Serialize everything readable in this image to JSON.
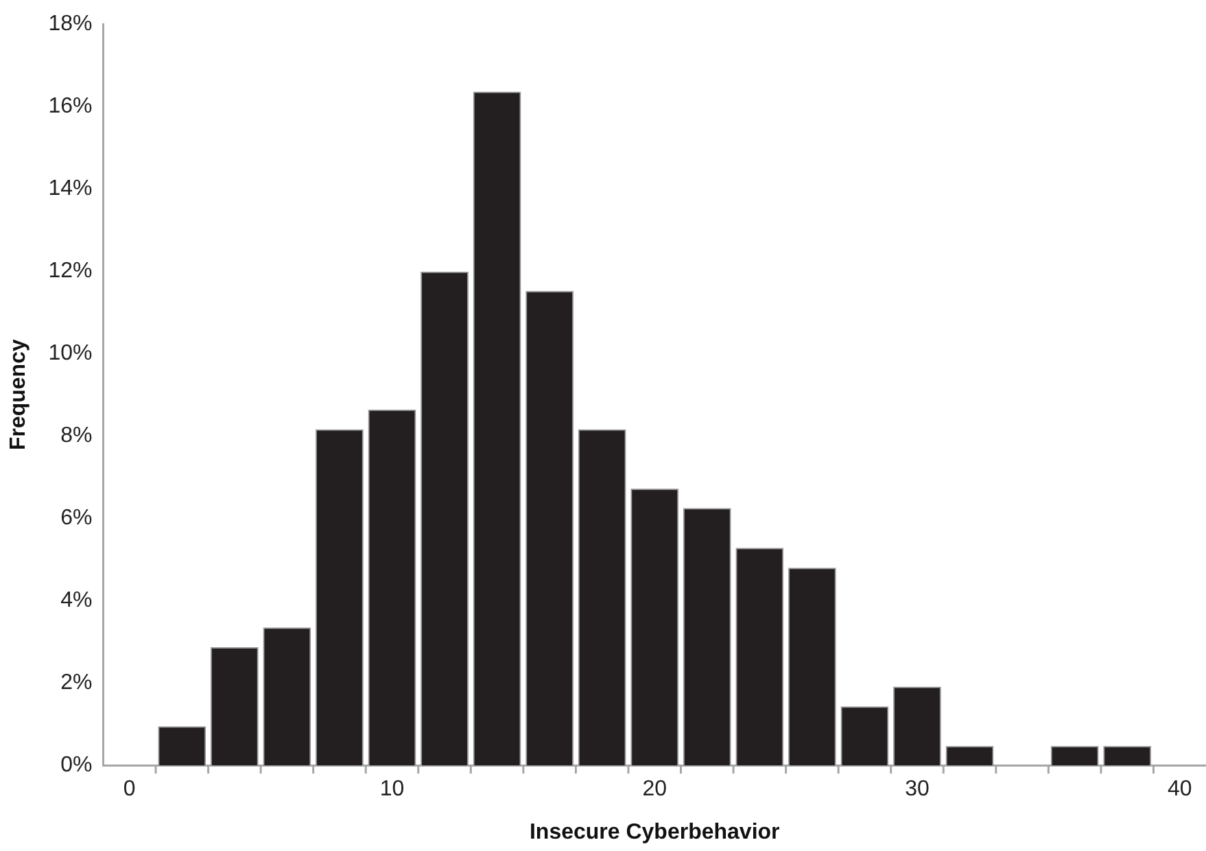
{
  "chart_data": {
    "type": "histogram",
    "xlabel": "Insecure Cyberbehavior",
    "ylabel": "Frequency",
    "bins": [
      1,
      3,
      5,
      7,
      9,
      11,
      13,
      15,
      17,
      19,
      21,
      23,
      25,
      27,
      29,
      31,
      33,
      35,
      37,
      39
    ],
    "values": [
      0.94,
      2.86,
      3.34,
      8.15,
      8.63,
      11.98,
      16.35,
      11.51,
      8.15,
      6.71,
      6.24,
      5.27,
      4.79,
      1.42,
      1.9,
      0.46,
      0,
      0.46,
      0.46
    ],
    "color": "#231f20",
    "xlim": [
      -1,
      41
    ],
    "xticks": [
      0,
      10,
      20,
      30,
      40
    ],
    "ylim": [
      0,
      18
    ],
    "yticks": [
      {
        "value": 0,
        "label": "0%"
      },
      {
        "value": 2,
        "label": "2%"
      },
      {
        "value": 4,
        "label": "4%"
      },
      {
        "value": 6,
        "label": "6%"
      },
      {
        "value": 8,
        "label": "8%"
      },
      {
        "value": 10,
        "label": "10%"
      },
      {
        "value": 12,
        "label": "12%"
      },
      {
        "value": 14,
        "label": "14%"
      },
      {
        "value": 16,
        "label": "16%"
      },
      {
        "value": 18,
        "label": "18%"
      }
    ],
    "grid": false,
    "legend": false
  }
}
